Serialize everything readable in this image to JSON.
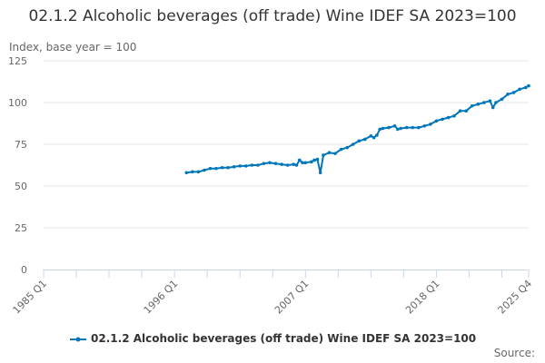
{
  "chart_data": {
    "type": "line",
    "title": "02.1.2 Alcoholic beverages (off trade) Wine IDEF SA 2023=100",
    "ylabel": "Index, base year = 100",
    "xlabel": "",
    "ylim": [
      0,
      125
    ],
    "yticks": [
      0,
      25,
      50,
      75,
      100,
      125
    ],
    "xrange": [
      "1985 Q1",
      "2025 Q4"
    ],
    "xtick_labels": [
      "1985 Q1",
      "1996 Q1",
      "2007 Q1",
      "2018 Q1",
      "2025 Q4"
    ],
    "grid": "horizontal",
    "legend_position": "bottom",
    "series": [
      {
        "name": "02.1.2 Alcoholic beverages (off trade) Wine IDEF SA 2023=100",
        "color": "#0077bb",
        "x": [
          1997.0,
          1997.5,
          1998.0,
          1998.5,
          1999.0,
          1999.5,
          2000.0,
          2000.5,
          2001.0,
          2001.5,
          2002.0,
          2002.5,
          2003.0,
          2003.5,
          2004.0,
          2004.5,
          2005.0,
          2005.5,
          2006.0,
          2006.25,
          2006.5,
          2006.75,
          2007.0,
          2007.5,
          2007.75,
          2008.0,
          2008.25,
          2008.5,
          2009.0,
          2009.5,
          2010.0,
          2010.5,
          2011.0,
          2011.5,
          2012.0,
          2012.5,
          2012.75,
          2013.0,
          2013.25,
          2013.5,
          2014.0,
          2014.5,
          2014.75,
          2015.0,
          2015.5,
          2016.0,
          2016.5,
          2017.0,
          2017.5,
          2018.0,
          2018.5,
          2019.0,
          2019.5,
          2020.0,
          2020.5,
          2021.0,
          2021.5,
          2022.0,
          2022.5,
          2022.75,
          2023.0,
          2023.5,
          2024.0,
          2024.5,
          2025.0,
          2025.5,
          2025.75
        ],
        "values": [
          58,
          58.5,
          58.5,
          59.5,
          60.5,
          60.5,
          61,
          61,
          61.5,
          62,
          62,
          62.5,
          62.5,
          63.5,
          64,
          63.5,
          63,
          62.5,
          63,
          62.5,
          65.5,
          64,
          64,
          64.5,
          65.5,
          66,
          58,
          68.5,
          70,
          69.5,
          72,
          73,
          75,
          77,
          78,
          80,
          79,
          80.5,
          84,
          84.5,
          85,
          86,
          84,
          84.5,
          85,
          85,
          85,
          86,
          87,
          89,
          90,
          91,
          92,
          95,
          95,
          98,
          99,
          100,
          101,
          97,
          100,
          102,
          105,
          106,
          108,
          109,
          110
        ]
      }
    ]
  },
  "source_label": "Source:"
}
